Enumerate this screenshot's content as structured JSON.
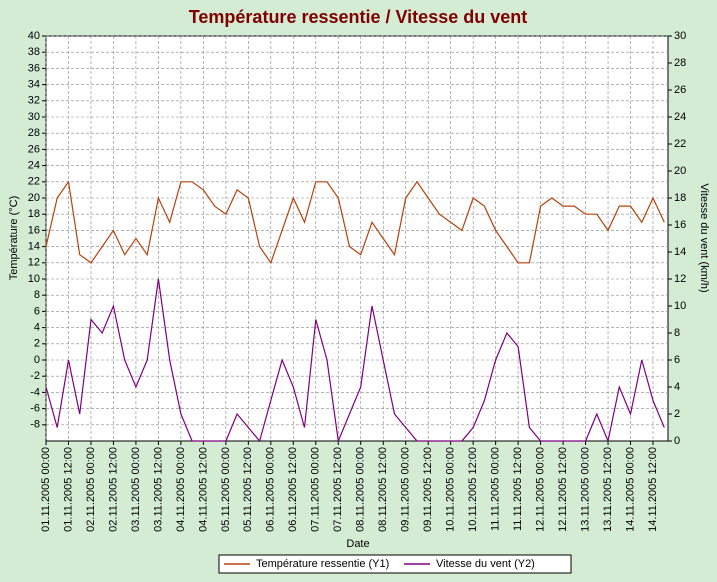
{
  "chart_data": {
    "type": "line",
    "title": "Température ressentie / Vitesse du vent",
    "xlabel": "Date",
    "ylabel": "Température (°C)",
    "y2label": "Vitesse du vent (km/h)",
    "x": [
      "01.11.2005 00:00",
      "01.11.2005 06:00",
      "01.11.2005 12:00",
      "01.11.2005 18:00",
      "02.11.2005 00:00",
      "02.11.2005 06:00",
      "02.11.2005 12:00",
      "02.11.2005 18:00",
      "03.11.2005 00:00",
      "03.11.2005 06:00",
      "03.11.2005 12:00",
      "03.11.2005 18:00",
      "04.11.2005 00:00",
      "04.11.2005 06:00",
      "04.11.2005 12:00",
      "04.11.2005 18:00",
      "05.11.2005 00:00",
      "05.11.2005 06:00",
      "05.11.2005 12:00",
      "05.11.2005 18:00",
      "06.11.2005 00:00",
      "06.11.2005 06:00",
      "06.11.2005 12:00",
      "06.11.2005 18:00",
      "07.11.2005 00:00",
      "07.11.2005 06:00",
      "07.11.2005 12:00",
      "07.11.2005 18:00",
      "08.11.2005 00:00",
      "08.11.2005 06:00",
      "08.11.2005 12:00",
      "08.11.2005 18:00",
      "09.11.2005 00:00",
      "09.11.2005 06:00",
      "09.11.2005 12:00",
      "09.11.2005 18:00",
      "10.11.2005 00:00",
      "10.11.2005 06:00",
      "10.11.2005 12:00",
      "10.11.2005 18:00",
      "11.11.2005 00:00",
      "11.11.2005 06:00",
      "11.11.2005 12:00",
      "11.11.2005 18:00",
      "12.11.2005 00:00",
      "12.11.2005 06:00",
      "12.11.2005 12:00",
      "12.11.2005 18:00",
      "13.11.2005 00:00",
      "13.11.2005 06:00",
      "13.11.2005 12:00",
      "13.11.2005 18:00",
      "14.11.2005 00:00",
      "14.11.2005 06:00",
      "14.11.2005 12:00",
      "14.11.2005 18:00"
    ],
    "series": [
      {
        "name": "Température ressentie (Y1)",
        "color": "#b5420c",
        "axis": "y",
        "values": [
          14,
          20,
          22,
          13,
          12,
          14,
          16,
          13,
          15,
          13,
          20,
          17,
          22,
          22,
          21,
          19,
          18,
          21,
          20,
          14,
          12,
          16,
          20,
          17,
          22,
          22,
          20,
          14,
          13,
          17,
          15,
          13,
          20,
          22,
          20,
          18,
          17,
          16,
          20,
          19,
          16,
          14,
          12,
          12,
          19,
          20,
          19,
          19,
          18,
          18,
          16,
          19,
          19,
          17,
          20,
          17
        ]
      },
      {
        "name": "Vitesse du vent (Y2)",
        "color": "#800080",
        "axis": "y2",
        "values": [
          4,
          1,
          6,
          2,
          9,
          8,
          10,
          6,
          4,
          6,
          12,
          6,
          2,
          0,
          0,
          0,
          0,
          2,
          1,
          0,
          3,
          6,
          4,
          1,
          9,
          6,
          0,
          2,
          4,
          10,
          6,
          2,
          1,
          0,
          0,
          0,
          0,
          0,
          1,
          3,
          6,
          8,
          7,
          1,
          0,
          0,
          0,
          0,
          0,
          2,
          0,
          4,
          2,
          6,
          3,
          1
        ]
      }
    ],
    "xlim": [
      "01.11.2005 00:00",
      "14.11.2005 20:00"
    ],
    "xticks": [
      "01.11.2005 00:00",
      "01.11.2005 12:00",
      "02.11.2005 00:00",
      "02.11.2005 12:00",
      "03.11.2005 00:00",
      "03.11.2005 12:00",
      "04.11.2005 00:00",
      "04.11.2005 12:00",
      "05.11.2005 00:00",
      "05.11.2005 12:00",
      "06.11.2005 00:00",
      "06.11.2005 12:00",
      "07.11.2005 00:00",
      "07.11.2005 12:00",
      "08.11.2005 00:00",
      "08.11.2005 12:00",
      "09.11.2005 00:00",
      "09.11.2005 12:00",
      "10.11.2005 00:00",
      "10.11.2005 12:00",
      "11.11.2005 00:00",
      "11.11.2005 12:00",
      "12.11.2005 00:00",
      "12.11.2005 12:00",
      "13.11.2005 00:00",
      "13.11.2005 12:00",
      "14.11.2005 00:00",
      "14.11.2005 12:00"
    ],
    "ylim": [
      -10,
      40
    ],
    "yticks": [
      -8,
      -6,
      -4,
      -2,
      0,
      2,
      4,
      6,
      8,
      10,
      12,
      14,
      16,
      18,
      20,
      22,
      24,
      26,
      28,
      30,
      32,
      34,
      36,
      38,
      40
    ],
    "y2lim": [
      0,
      30
    ],
    "y2ticks": [
      0,
      2,
      4,
      6,
      8,
      10,
      12,
      14,
      16,
      18,
      20,
      22,
      24,
      26,
      28,
      30
    ],
    "grid": true,
    "legend": "bottom"
  }
}
